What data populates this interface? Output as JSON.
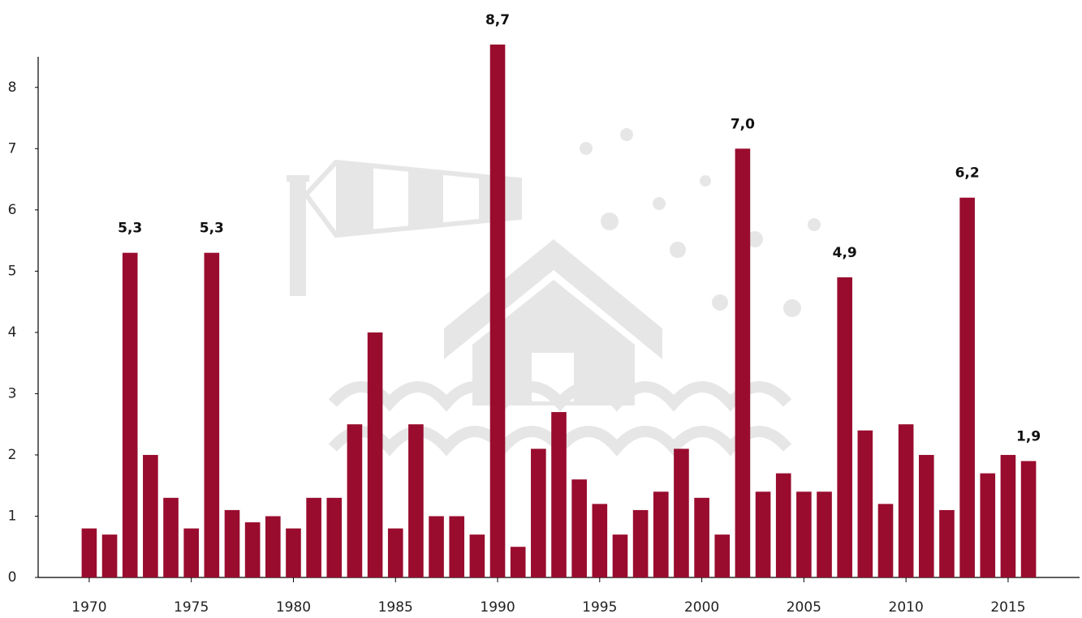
{
  "chart_data": {
    "type": "bar",
    "x": [
      1970,
      1971,
      1972,
      1973,
      1974,
      1975,
      1976,
      1977,
      1978,
      1979,
      1980,
      1981,
      1982,
      1983,
      1984,
      1985,
      1986,
      1987,
      1988,
      1989,
      1990,
      1991,
      1992,
      1993,
      1994,
      1995,
      1996,
      1997,
      1998,
      1999,
      2000,
      2001,
      2002,
      2003,
      2004,
      2005,
      2006,
      2007,
      2008,
      2009,
      2010,
      2011,
      2012,
      2013,
      2014,
      2015,
      2016
    ],
    "values": [
      0.8,
      0.7,
      5.3,
      2.0,
      1.3,
      0.8,
      5.3,
      1.1,
      0.9,
      1.0,
      0.8,
      1.3,
      1.3,
      2.5,
      4.0,
      0.8,
      2.5,
      1.0,
      1.0,
      0.7,
      8.7,
      0.5,
      2.1,
      2.7,
      1.6,
      1.2,
      0.7,
      1.1,
      1.4,
      2.1,
      1.3,
      0.7,
      7.0,
      1.4,
      1.7,
      1.4,
      1.4,
      4.9,
      2.4,
      1.2,
      2.5,
      2.0,
      1.1,
      6.2,
      1.7,
      2.0,
      1.9
    ],
    "value_labels": [
      null,
      null,
      "5,3",
      null,
      null,
      null,
      "5,3",
      null,
      null,
      null,
      null,
      null,
      null,
      null,
      null,
      null,
      null,
      null,
      null,
      null,
      "8,7",
      null,
      null,
      null,
      null,
      null,
      null,
      null,
      null,
      null,
      null,
      null,
      "7,0",
      null,
      null,
      null,
      null,
      "4,9",
      null,
      null,
      null,
      null,
      null,
      "6,2",
      null,
      null,
      "1,9"
    ],
    "color": "#990c2e",
    "xlim": [
      1967.5,
      2018.5
    ],
    "xticks": [
      1970,
      1975,
      1980,
      1985,
      1990,
      1995,
      2000,
      2005,
      2010,
      2015
    ],
    "ylim": [
      0,
      8.5
    ],
    "yticks": [
      0,
      1,
      2,
      3,
      4,
      5,
      6,
      7,
      8
    ],
    "grid": false
  }
}
